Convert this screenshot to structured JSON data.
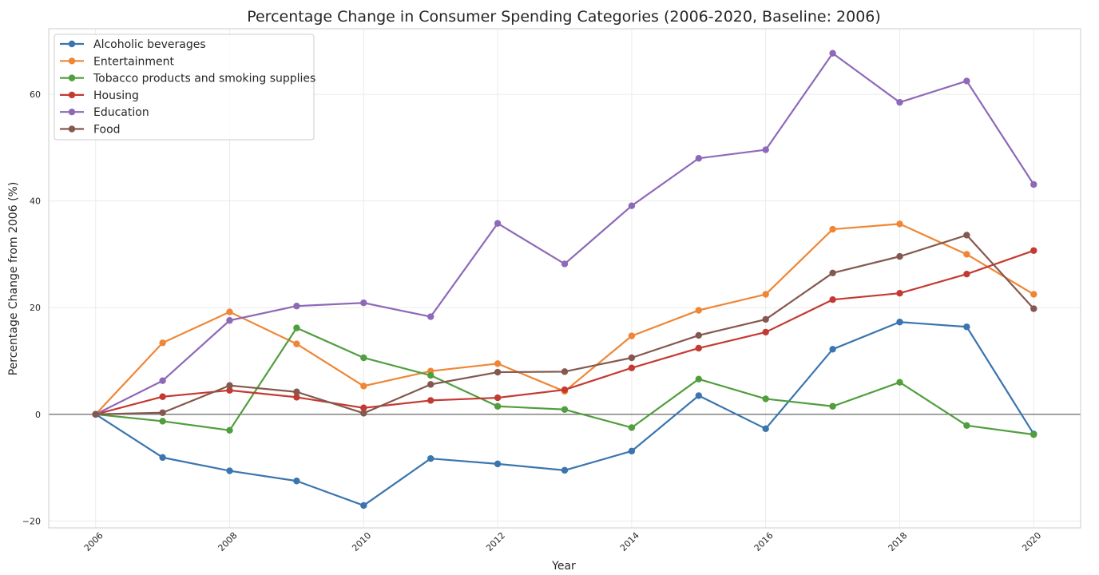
{
  "chart_data": {
    "type": "line",
    "title": "Percentage Change in Consumer Spending Categories (2006-2020, Baseline: 2006)",
    "xlabel": "Year",
    "ylabel": "Percentage Change from 2006 (%)",
    "x": [
      2006,
      2007,
      2008,
      2009,
      2010,
      2011,
      2012,
      2013,
      2014,
      2015,
      2016,
      2017,
      2018,
      2019,
      2020
    ],
    "xticks": [
      2006,
      2008,
      2010,
      2012,
      2014,
      2016,
      2018,
      2020
    ],
    "yticks": [
      -20,
      0,
      20,
      40,
      60
    ],
    "xlim": [
      2005.3,
      2020.7
    ],
    "ylim": [
      -21.3,
      72.3
    ],
    "grid": true,
    "legend_position": "top-left",
    "series": [
      {
        "name": "Alcoholic beverages",
        "color": "#3a75af",
        "values": [
          0,
          -8.1,
          -10.6,
          -12.5,
          -17.1,
          -8.3,
          -9.3,
          -10.5,
          -6.9,
          3.5,
          -2.7,
          12.2,
          17.3,
          16.4,
          -3.7
        ]
      },
      {
        "name": "Entertainment",
        "color": "#ef8636",
        "values": [
          0,
          13.4,
          19.2,
          13.2,
          5.3,
          8.1,
          9.5,
          4.3,
          14.7,
          19.5,
          22.5,
          34.7,
          35.7,
          30.0,
          22.5
        ]
      },
      {
        "name": "Tobacco products and smoking supplies",
        "color": "#519e3e",
        "values": [
          0,
          -1.3,
          -3.0,
          16.2,
          10.6,
          7.3,
          1.5,
          0.9,
          -2.5,
          6.6,
          2.9,
          1.5,
          6.0,
          -2.1,
          -3.8
        ]
      },
      {
        "name": "Housing",
        "color": "#c43a32",
        "values": [
          0,
          3.3,
          4.5,
          3.2,
          1.2,
          2.6,
          3.1,
          4.6,
          8.7,
          12.4,
          15.4,
          21.5,
          22.7,
          26.3,
          30.7
        ]
      },
      {
        "name": "Education",
        "color": "#8d69b8",
        "values": [
          0,
          6.3,
          17.6,
          20.3,
          20.9,
          18.3,
          35.8,
          28.2,
          39.1,
          48.0,
          49.6,
          67.7,
          58.5,
          62.5,
          43.1
        ]
      },
      {
        "name": "Food",
        "color": "#84584e",
        "values": [
          0,
          0.3,
          5.4,
          4.2,
          0.2,
          5.6,
          7.9,
          8.0,
          10.6,
          14.8,
          17.8,
          26.5,
          29.6,
          33.6,
          19.8
        ]
      }
    ]
  }
}
